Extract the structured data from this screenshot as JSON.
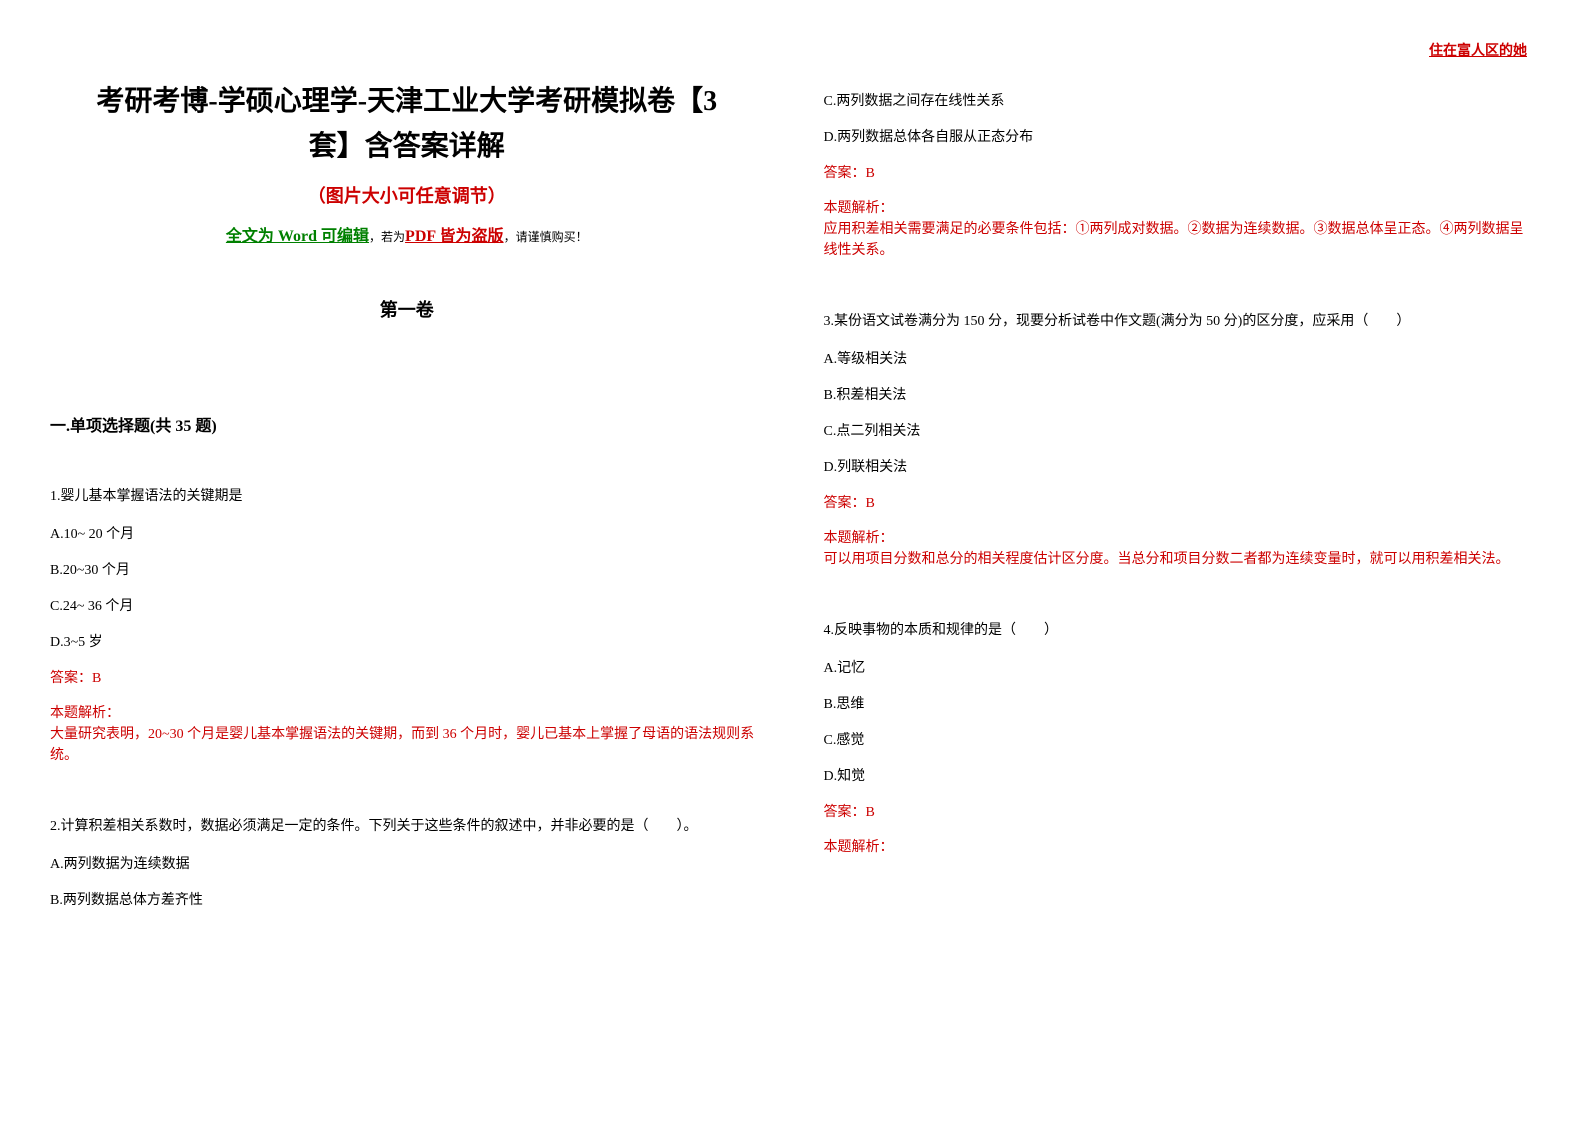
{
  "header": {
    "right_text": "住在富人区的她"
  },
  "title_line1": "考研考博-学硕心理学-天津工业大学考研模拟卷【3",
  "title_line2": "套】含答案详解",
  "subtitle": "（图片大小可任意调节）",
  "word_note": {
    "prefix": "全文为 Word 可编辑",
    "mid": "，若为",
    "pdf": "PDF 皆为盗版",
    "suffix": "，请谨慎购买！"
  },
  "volume": "第一卷",
  "section_title": "一.单项选择题(共 35 题)",
  "q1": {
    "text": "1.婴儿基本掌握语法的关键期是",
    "a": "A.10~ 20 个月",
    "b": "B.20~30 个月",
    "c": "C.24~ 36 个月",
    "d": "D.3~5 岁",
    "answer": "答案：B",
    "explain_label": "本题解析：",
    "explain": "大量研究表明，20~30 个月是婴儿基本掌握语法的关键期，而到 36 个月时，婴儿已基本上掌握了母语的语法规则系统。"
  },
  "q2": {
    "text": "2.计算积差相关系数时，数据必须满足一定的条件。下列关于这些条件的叙述中，并非必要的是（　　）。",
    "a": "A.两列数据为连续数据",
    "b": "B.两列数据总体方差齐性",
    "c": "C.两列数据之间存在线性关系",
    "d": "D.两列数据总体各自服从正态分布",
    "answer": "答案：B",
    "explain_label": "本题解析：",
    "explain": "应用积差相关需要满足的必要条件包括：①两列成对数据。②数据为连续数据。③数据总体呈正态。④两列数据呈线性关系。"
  },
  "q3": {
    "text": "3.某份语文试卷满分为 150 分，现要分析试卷中作文题(满分为 50 分)的区分度，应采用（　　）",
    "a": "A.等级相关法",
    "b": "B.积差相关法",
    "c": "C.点二列相关法",
    "d": "D.列联相关法",
    "answer": "答案：B",
    "explain_label": "本题解析：",
    "explain": "可以用项目分数和总分的相关程度估计区分度。当总分和项目分数二者都为连续变量时，就可以用积差相关法。"
  },
  "q4": {
    "text": "4.反映事物的本质和规律的是（　　）",
    "a": "A.记忆",
    "b": "B.思维",
    "c": "C.感觉",
    "d": "D.知觉",
    "answer": "答案：B",
    "explain_label": "本题解析："
  },
  "colors": {
    "red": "#cc0000",
    "green": "#008000",
    "black": "#000000",
    "background": "#ffffff"
  },
  "typography": {
    "title_fontsize": 28,
    "subtitle_fontsize": 18,
    "body_fontsize": 14,
    "section_fontsize": 16
  }
}
